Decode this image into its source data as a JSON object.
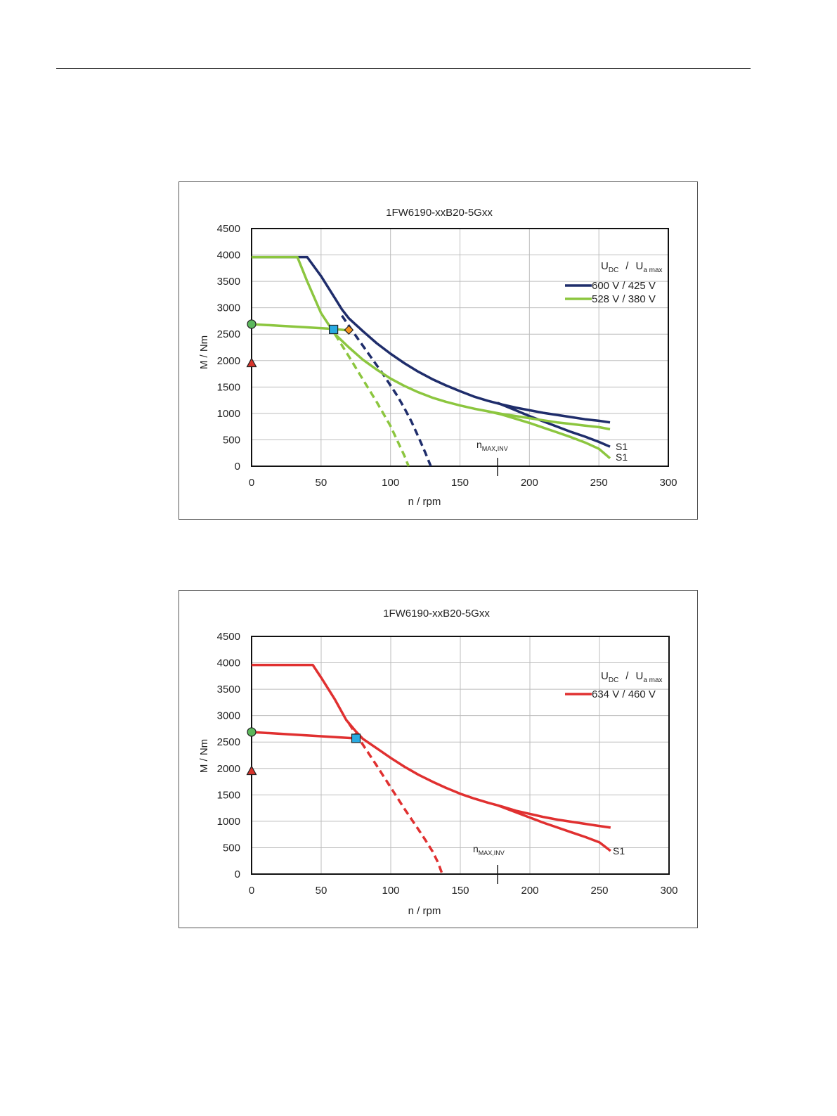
{
  "page": {},
  "charts": [
    {
      "title": "1FW6190-xxB20-5Gxx",
      "xlabel": "n / rpm",
      "ylabel": "M / Nm",
      "legend_header": {
        "u1": "U",
        "u1_sub": "DC",
        "sep": "/",
        "u2": "U",
        "u2_sub": "a max"
      },
      "nmax_label": {
        "main": "n",
        "sub": "MAX,INV"
      },
      "s1_labels": [
        "S1",
        "S1"
      ],
      "legend_entries": [
        "600 V / 425 V",
        "528 V / 380 V"
      ]
    },
    {
      "title": "1FW6190-xxB20-5Gxx",
      "xlabel": "n / rpm",
      "ylabel": "M / Nm",
      "legend_header": {
        "u1": "U",
        "u1_sub": "DC",
        "sep": "/",
        "u2": "U",
        "u2_sub": "a max"
      },
      "nmax_label": {
        "main": "n",
        "sub": "MAX,INV"
      },
      "s1_labels": [
        "S1"
      ],
      "legend_entries": [
        "634 V / 460 V"
      ]
    }
  ],
  "chart_data": [
    {
      "type": "line",
      "title": "1FW6190-xxB20-5Gxx",
      "xlabel": "n / rpm",
      "ylabel": "M / Nm",
      "xlim": [
        0,
        300
      ],
      "ylim": [
        0,
        4500
      ],
      "xticks": [
        0,
        50,
        100,
        150,
        200,
        250,
        300
      ],
      "yticks": [
        0,
        500,
        1000,
        1500,
        2000,
        2500,
        3000,
        3500,
        4000,
        4500
      ],
      "grid": true,
      "legend_position": "top-right",
      "nmax_inv": 177,
      "series": [
        {
          "name": "600 V / 425 V",
          "color": "#1f2d6b",
          "style": "solid",
          "x": [
            0,
            40,
            50,
            60,
            65,
            70,
            80,
            90,
            100,
            110,
            120,
            130,
            140,
            150,
            160,
            170,
            180,
            190,
            200,
            210,
            220,
            230,
            240,
            250,
            258
          ],
          "y": [
            3960,
            3960,
            3600,
            3180,
            2970,
            2800,
            2560,
            2330,
            2130,
            1950,
            1790,
            1650,
            1530,
            1420,
            1320,
            1240,
            1170,
            1110,
            1060,
            1010,
            970,
            930,
            890,
            860,
            830
          ]
        },
        {
          "name": "600 V / 425 V S1",
          "color": "#1f2d6b",
          "style": "solid",
          "x": [
            177,
            190,
            200,
            210,
            220,
            230,
            240,
            250,
            258
          ],
          "y": [
            1200,
            1060,
            950,
            850,
            750,
            650,
            560,
            460,
            370
          ]
        },
        {
          "name": "600 V / 425 V dashed",
          "color": "#1f2d6b",
          "style": "dashed",
          "x": [
            65,
            75,
            85,
            95,
            105,
            110,
            115,
            120,
            125,
            129
          ],
          "y": [
            2850,
            2470,
            2100,
            1730,
            1330,
            1100,
            850,
            560,
            260,
            0
          ]
        },
        {
          "name": "528 V / 380 V",
          "color": "#8cc63f",
          "style": "solid",
          "x": [
            0,
            33,
            40,
            50,
            60,
            70,
            80,
            90,
            100,
            110,
            120,
            130,
            140,
            150,
            160,
            170,
            180,
            190,
            200,
            210,
            220,
            230,
            240,
            250,
            258
          ],
          "y": [
            3960,
            3960,
            3500,
            2900,
            2500,
            2250,
            2020,
            1830,
            1660,
            1520,
            1400,
            1300,
            1220,
            1150,
            1090,
            1040,
            990,
            950,
            910,
            870,
            830,
            800,
            770,
            740,
            700
          ]
        },
        {
          "name": "528 V / 380 V S1",
          "color": "#8cc63f",
          "style": "solid",
          "x": [
            170,
            180,
            190,
            200,
            210,
            220,
            230,
            240,
            250,
            258
          ],
          "y": [
            1040,
            980,
            900,
            820,
            730,
            640,
            550,
            450,
            330,
            150
          ]
        },
        {
          "name": "528 V / 380 V dashed",
          "color": "#8cc63f",
          "style": "dashed",
          "x": [
            60,
            70,
            80,
            90,
            100,
            105,
            110,
            113
          ],
          "y": [
            2500,
            2080,
            1650,
            1220,
            760,
            480,
            200,
            0
          ]
        },
        {
          "name": "528 V / 380 V lower",
          "color": "#8cc63f",
          "style": "solid",
          "x": [
            0,
            20,
            40,
            59,
            70
          ],
          "y": [
            2690,
            2660,
            2630,
            2600,
            2570
          ]
        }
      ],
      "markers": [
        {
          "shape": "circle",
          "x": 0,
          "y": 2690,
          "color": "#5cb85c"
        },
        {
          "shape": "triangle",
          "x": 0,
          "y": 1950,
          "color": "#d9342b"
        },
        {
          "shape": "square",
          "x": 59,
          "y": 2590,
          "color": "#29abe2"
        },
        {
          "shape": "diamond",
          "x": 70,
          "y": 2580,
          "color": "#f7941d"
        }
      ]
    },
    {
      "type": "line",
      "title": "1FW6190-xxB20-5Gxx",
      "xlabel": "n / rpm",
      "ylabel": "M / Nm",
      "xlim": [
        0,
        300
      ],
      "ylim": [
        0,
        4500
      ],
      "xticks": [
        0,
        50,
        100,
        150,
        200,
        250,
        300
      ],
      "yticks": [
        0,
        500,
        1000,
        1500,
        2000,
        2500,
        3000,
        3500,
        4000,
        4500
      ],
      "grid": true,
      "legend_position": "top-right",
      "nmax_inv": 177,
      "series": [
        {
          "name": "634 V / 460 V",
          "color": "#e03030",
          "style": "solid",
          "x": [
            0,
            44,
            50,
            60,
            68,
            75,
            80,
            90,
            100,
            110,
            120,
            130,
            140,
            150,
            160,
            170,
            180,
            190,
            200,
            210,
            220,
            230,
            240,
            250,
            258
          ],
          "y": [
            3960,
            3960,
            3720,
            3300,
            2920,
            2700,
            2560,
            2380,
            2200,
            2030,
            1880,
            1750,
            1630,
            1520,
            1430,
            1350,
            1280,
            1200,
            1140,
            1080,
            1030,
            990,
            950,
            910,
            880
          ]
        },
        {
          "name": "634 V / 460 V S1",
          "color": "#e03030",
          "style": "solid",
          "x": [
            177,
            190,
            200,
            210,
            220,
            230,
            240,
            250,
            258
          ],
          "y": [
            1300,
            1170,
            1070,
            970,
            880,
            790,
            700,
            600,
            440
          ]
        },
        {
          "name": "634 V / 460 V dashed",
          "color": "#e03030",
          "style": "dashed",
          "x": [
            70,
            80,
            90,
            100,
            110,
            120,
            125,
            130,
            134,
            137
          ],
          "y": [
            2850,
            2450,
            2050,
            1640,
            1230,
            840,
            640,
            430,
            220,
            0
          ]
        },
        {
          "name": "634 V / 460 V lower",
          "color": "#e03030",
          "style": "solid",
          "x": [
            0,
            25,
            50,
            75
          ],
          "y": [
            2690,
            2650,
            2610,
            2570
          ]
        }
      ],
      "markers": [
        {
          "shape": "circle",
          "x": 0,
          "y": 2690,
          "color": "#5cb85c"
        },
        {
          "shape": "triangle",
          "x": 0,
          "y": 1950,
          "color": "#d9342b"
        },
        {
          "shape": "square",
          "x": 75,
          "y": 2570,
          "color": "#29abe2"
        }
      ]
    }
  ]
}
